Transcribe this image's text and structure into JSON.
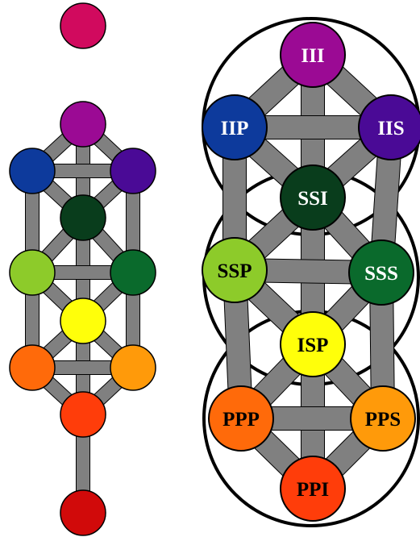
{
  "diagram": {
    "colors": {
      "path": "#808080",
      "stroke": "#000000",
      "background": "#ffffff"
    },
    "left_tree": {
      "nodes": [
        {
          "id": "l-top",
          "color": "#d10a5e"
        },
        {
          "id": "l-crown",
          "color": "#9b0a94"
        },
        {
          "id": "l-upper-left",
          "color": "#0d3a9c"
        },
        {
          "id": "l-upper-right",
          "color": "#4a0a96"
        },
        {
          "id": "l-center-top",
          "color": "#093d1c"
        },
        {
          "id": "l-mid-left",
          "color": "#8dcb2a"
        },
        {
          "id": "l-mid-right",
          "color": "#0a6a2c"
        },
        {
          "id": "l-center",
          "color": "#ffff0a"
        },
        {
          "id": "l-low-left",
          "color": "#ff6a0a"
        },
        {
          "id": "l-low-right",
          "color": "#ff9a0a"
        },
        {
          "id": "l-foundation",
          "color": "#ff3d0a"
        },
        {
          "id": "l-bottom",
          "color": "#d10a0a"
        }
      ]
    },
    "right_tree": {
      "nodes": [
        {
          "id": "III",
          "label": "III",
          "color": "#9b0a94",
          "text_color": "#ffffff"
        },
        {
          "id": "IIP",
          "label": "IIP",
          "color": "#0d3a9c",
          "text_color": "#ffffff"
        },
        {
          "id": "IIS",
          "label": "IIS",
          "color": "#4a0a96",
          "text_color": "#ffffff"
        },
        {
          "id": "SSI",
          "label": "SSI",
          "color": "#093d1c",
          "text_color": "#ffffff"
        },
        {
          "id": "SSP",
          "label": "SSP",
          "color": "#8dcb2a",
          "text_color": "#000000"
        },
        {
          "id": "SSS",
          "label": "SSS",
          "color": "#0a6a2c",
          "text_color": "#ffffff"
        },
        {
          "id": "ISP",
          "label": "ISP",
          "color": "#ffff0a",
          "text_color": "#000000"
        },
        {
          "id": "PPP",
          "label": "PPP",
          "color": "#ff6a0a",
          "text_color": "#000000"
        },
        {
          "id": "PPS",
          "label": "PPS",
          "color": "#ff9a0a",
          "text_color": "#000000"
        },
        {
          "id": "PPI",
          "label": "PPI",
          "color": "#ff3d0a",
          "text_color": "#000000"
        }
      ]
    }
  }
}
